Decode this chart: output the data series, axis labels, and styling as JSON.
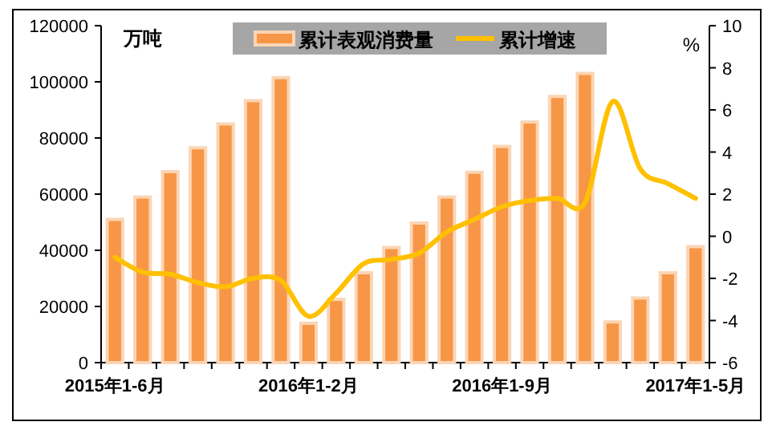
{
  "chart_data": {
    "type": "bar",
    "ylabel": "万吨",
    "y2label": "%",
    "categories": [
      "2015年1-6月",
      null,
      null,
      null,
      null,
      null,
      null,
      "2016年1-2月",
      null,
      null,
      null,
      null,
      null,
      null,
      "2016年1-9月",
      null,
      null,
      null,
      null,
      null,
      null,
      "2017年1-5月"
    ],
    "series": [
      {
        "name": "累计表观消费量",
        "color": "#f79646",
        "values": [
          51000,
          59000,
          68000,
          76500,
          85000,
          93300,
          101500,
          14000,
          22500,
          32000,
          41000,
          49700,
          59000,
          67800,
          77000,
          85700,
          94800,
          103000,
          14500,
          23000,
          32000,
          41300
        ]
      },
      {
        "name": "累计增速",
        "type": "line",
        "axis": "y2",
        "color": "#ffc000",
        "values": [
          -1.0,
          -1.7,
          -1.8,
          -2.2,
          -2.4,
          -2.0,
          -2.1,
          -3.8,
          -2.7,
          -1.3,
          -1.1,
          -0.8,
          0.2,
          0.8,
          1.4,
          1.7,
          1.8,
          1.6,
          6.4,
          3.2,
          2.5,
          1.8
        ]
      }
    ],
    "ylim": [
      0,
      120000
    ],
    "yticks": [
      0,
      20000,
      40000,
      60000,
      80000,
      100000,
      120000
    ],
    "y2lim": [
      -6,
      10
    ],
    "y2ticks": [
      -6,
      -4,
      -2,
      0,
      2,
      4,
      6,
      8,
      10
    ],
    "grid": false,
    "legend": "top",
    "marker": "none",
    "line_style": "solid"
  }
}
